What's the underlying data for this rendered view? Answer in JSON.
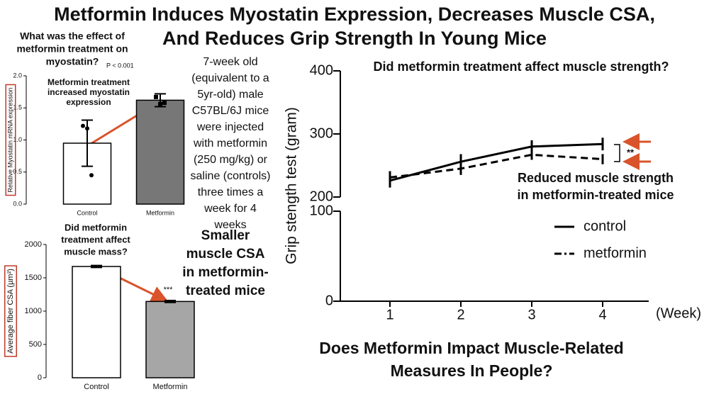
{
  "title": [
    "Metformin Induces Myostatin Expression, Decreases Muscle CSA,",
    "And Reduces Grip Strength In Young Mice"
  ],
  "study_note": [
    "7-week old",
    "(equivalent to a",
    "5yr-old) male",
    "C57BL/6J mice",
    "were injected",
    "with metformin",
    "(250 mg/kg) or",
    "saline (controls)",
    "three times a",
    "week for 4",
    "weeks"
  ],
  "csa_note": [
    "Smaller",
    "muscle CSA",
    "in metformin-",
    "treated mice"
  ],
  "footer": [
    "Does Metformin Impact Muscle-Related",
    "Measures In People?"
  ],
  "chart_data": [
    {
      "type": "bar",
      "question": [
        "What was the effect of",
        "metformin treatment on",
        "myostatin?"
      ],
      "p_value": "P < 0.001",
      "annotation": [
        "Metformin treatment",
        "increased myostatin",
        "expression"
      ],
      "ylabel": "Relative Myostatin mRNA expression",
      "categories": [
        "Control",
        "Metformin"
      ],
      "values": [
        0.95,
        1.62
      ],
      "errors": [
        0.36,
        0.1
      ],
      "points": [
        [
          1.22,
          1.18,
          0.45
        ],
        [
          1.67,
          1.56,
          1.58
        ]
      ],
      "colors": [
        "#ffffff",
        "#777777"
      ],
      "ylim": [
        0,
        2
      ],
      "yticks": [
        {
          "value": 0,
          "label": "0.0"
        },
        {
          "value": 0.5,
          "label": "0.5"
        },
        {
          "value": 1,
          "label": "1.0"
        },
        {
          "value": 1.5,
          "label": "1.5"
        },
        {
          "value": 2,
          "label": "2.0"
        }
      ]
    },
    {
      "type": "bar",
      "question": [
        "Did metformin",
        "treatment affect",
        "muscle mass?"
      ],
      "ylabel": "Average fiber CSA (µm²)",
      "categories": [
        "Control",
        "Metformin"
      ],
      "values": [
        1670,
        1145
      ],
      "errors": [
        15,
        15
      ],
      "colors": [
        "#ffffff",
        "#a6a6a6"
      ],
      "significance": "***",
      "ylim": [
        0,
        2000
      ],
      "yticks": [
        0,
        500,
        1000,
        1500,
        2000
      ]
    },
    {
      "type": "line",
      "question": "Did metformin treatment affect muscle strength?",
      "annotation": [
        "Reduced muscle strength",
        "in metformin-treated mice"
      ],
      "significance": "**",
      "ylabel": "Grip stength test (gram)",
      "xlabel": "(Week)",
      "x": [
        1,
        2,
        3,
        4
      ],
      "series": [
        {
          "name": "control",
          "color": "#000000",
          "dashed": false,
          "values": [
            226,
            256,
            280,
            284
          ],
          "errors": [
            11,
            12,
            10,
            10
          ]
        },
        {
          "name": "metformin",
          "color": "#000000",
          "dashed": true,
          "values": [
            231,
            245,
            267,
            260
          ],
          "errors": [
            10,
            10,
            8,
            8
          ]
        }
      ],
      "xlim": [
        0.3,
        4.65
      ],
      "xticks": [
        1,
        2,
        3,
        4
      ],
      "ylim": [
        0,
        400
      ],
      "y_break": [
        100,
        200
      ],
      "yticks": [
        0,
        100,
        200,
        300,
        400
      ]
    }
  ]
}
